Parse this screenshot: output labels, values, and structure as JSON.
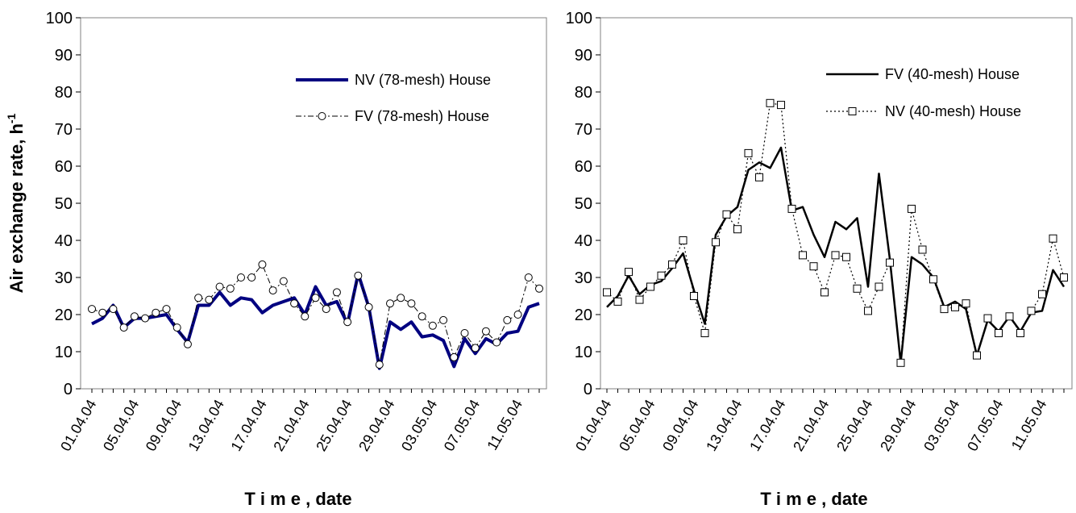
{
  "chart_data": [
    {
      "type": "line",
      "ylabel": "Air exchange rate, h",
      "ylabel_superscript": "-1",
      "xlabel": "T i m e , date",
      "ylim": [
        0,
        100
      ],
      "yticks": [
        "0",
        "10",
        "20",
        "30",
        "40",
        "50",
        "60",
        "70",
        "80",
        "90",
        "100"
      ],
      "x_tick_labels": [
        "01.04.04",
        "05.04.04",
        "09.04.04",
        "13.04.04",
        "17.04.04",
        "21.04.04",
        "25.04.04",
        "29.04.04",
        "03.05.04",
        "07.05.04",
        "11.05.04"
      ],
      "series": [
        {
          "name": "NV (78-mesh) House",
          "style": "thick",
          "color": "#000080",
          "values": [
            17.5,
            19,
            22.5,
            16.5,
            19,
            19,
            19.5,
            20,
            16,
            12.5,
            22.5,
            22.5,
            26,
            22.5,
            24.5,
            24,
            20.5,
            22.5,
            23.5,
            24.5,
            20,
            27.5,
            22.5,
            23.5,
            17.5,
            31,
            22,
            5.5,
            18,
            16,
            18,
            14,
            14.5,
            13,
            6,
            13.5,
            9.5,
            13.5,
            12,
            15,
            15.5,
            22,
            23
          ]
        },
        {
          "name": "FV (78-mesh) House",
          "style": "dashdot-circle",
          "color": "#000000",
          "values": [
            21.5,
            20.5,
            21.5,
            16.5,
            19.5,
            19,
            20.5,
            21.5,
            16.5,
            12,
            24.5,
            24,
            27.5,
            27,
            30,
            30,
            33.5,
            26.5,
            29,
            23,
            19.5,
            24.5,
            21.5,
            26,
            18,
            30.5,
            22,
            6.5,
            23,
            24.5,
            23,
            19.5,
            17,
            18.5,
            8.5,
            15,
            11,
            15.5,
            12.5,
            18.5,
            20,
            30,
            27
          ]
        }
      ]
    },
    {
      "type": "line",
      "ylabel": "",
      "xlabel": "T i m e , date",
      "ylim": [
        0,
        100
      ],
      "yticks": [
        "0",
        "10",
        "20",
        "30",
        "40",
        "50",
        "60",
        "70",
        "80",
        "90",
        "100"
      ],
      "x_tick_labels": [
        "01.04.04",
        "05.04.04",
        "09.04.04",
        "13.04.04",
        "17.04.04",
        "21.04.04",
        "25.04.04",
        "29.04.04",
        "03.05.04",
        "07.05.04",
        "11.05.04"
      ],
      "series": [
        {
          "name": "FV (40-mesh) House",
          "style": "solid",
          "color": "#000000",
          "values": [
            22,
            25,
            30.5,
            25.5,
            28,
            29,
            32.5,
            36.5,
            26.5,
            17.5,
            41.5,
            46.5,
            49,
            59,
            61,
            59.5,
            65,
            48,
            49,
            41.5,
            35.5,
            45,
            43,
            46,
            27.5,
            58,
            35,
            7,
            35.5,
            33.5,
            30,
            22,
            23.5,
            21.5,
            9,
            18.5,
            15.5,
            19.5,
            15.5,
            20.5,
            21,
            32,
            27.5
          ]
        },
        {
          "name": "NV (40-mesh) House",
          "style": "dotted-square",
          "color": "#000000",
          "values": [
            26,
            23.5,
            31.5,
            24,
            27.5,
            30.5,
            33.5,
            40,
            25,
            15,
            39.5,
            47,
            43,
            63.5,
            57,
            77,
            76.5,
            48.5,
            36,
            33,
            26,
            36,
            35.5,
            27,
            21,
            27.5,
            34,
            7,
            48.5,
            37.5,
            29.5,
            21.5,
            22,
            23,
            9,
            19,
            15,
            19.5,
            15,
            21,
            25.5,
            40.5,
            30
          ]
        }
      ]
    }
  ]
}
